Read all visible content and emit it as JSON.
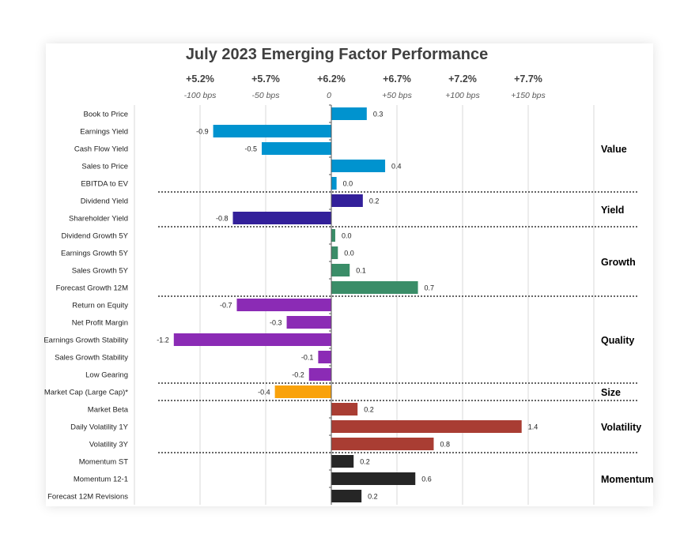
{
  "chart_data": {
    "type": "bar",
    "orientation": "horizontal",
    "title": "July 2023 Emerging Factor Performance",
    "top_tick_labels": [
      "+5.2%",
      "+5.7%",
      "+6.2%",
      "+6.7%",
      "+7.2%",
      "+7.7%"
    ],
    "sub_tick_labels": [
      "-100 bps",
      "-50 bps",
      "0",
      "+50 bps",
      "+100 bps",
      "+150 bps"
    ],
    "xlim": [
      -1.5,
      2.0
    ],
    "grid": true,
    "groups": [
      {
        "name": "Value",
        "color": "#0093cf",
        "items": [
          {
            "label": "Book to Price",
            "value": 0.27,
            "data_label": "0.3"
          },
          {
            "label": "Earnings Yield",
            "value": -0.9,
            "data_label": "-0.9"
          },
          {
            "label": "Cash Flow Yield",
            "value": -0.53,
            "data_label": "-0.5"
          },
          {
            "label": "Sales to Price",
            "value": 0.41,
            "data_label": "0.4"
          },
          {
            "label": "EBITDA to EV",
            "value": 0.04,
            "data_label": "0.0"
          }
        ]
      },
      {
        "name": "Yield",
        "color": "#33209a",
        "items": [
          {
            "label": "Dividend Yield",
            "value": 0.24,
            "data_label": "0.2"
          },
          {
            "label": "Shareholder Yield",
            "value": -0.75,
            "data_label": "-0.8"
          }
        ]
      },
      {
        "name": "Growth",
        "color": "#3a8d68",
        "items": [
          {
            "label": "Dividend Growth 5Y",
            "value": 0.03,
            "data_label": "0.0"
          },
          {
            "label": "Earnings Growth 5Y",
            "value": 0.05,
            "data_label": "0.0"
          },
          {
            "label": "Sales Growth 5Y",
            "value": 0.14,
            "data_label": "0.1"
          },
          {
            "label": "Forecast Growth 12M",
            "value": 0.66,
            "data_label": "0.7"
          }
        ]
      },
      {
        "name": "Quality",
        "color": "#8b2bb5",
        "items": [
          {
            "label": "Return on Equity",
            "value": -0.72,
            "data_label": "-0.7"
          },
          {
            "label": "Net Profit Margin",
            "value": -0.34,
            "data_label": "-0.3"
          },
          {
            "label": "Earnings Growth Stability",
            "value": -1.2,
            "data_label": "-1.2"
          },
          {
            "label": "Sales Growth Stability",
            "value": -0.1,
            "data_label": "-0.1"
          },
          {
            "label": "Low Gearing",
            "value": -0.17,
            "data_label": "-0.2"
          }
        ]
      },
      {
        "name": "Size",
        "color": "#f9a20b",
        "items": [
          {
            "label": "Market Cap (Large Cap)*",
            "value": -0.43,
            "data_label": "-0.4"
          }
        ]
      },
      {
        "name": "Volatility",
        "color": "#a93d33",
        "items": [
          {
            "label": "Market Beta",
            "value": 0.2,
            "data_label": "0.2"
          },
          {
            "label": "Daily Volatility 1Y",
            "value": 1.45,
            "data_label": "1.4"
          },
          {
            "label": "Volatility 3Y",
            "value": 0.78,
            "data_label": "0.8"
          }
        ]
      },
      {
        "name": "Momentum",
        "color": "#262626",
        "items": [
          {
            "label": "Momentum ST",
            "value": 0.17,
            "data_label": "0.2"
          },
          {
            "label": "Momentum 12-1",
            "value": 0.64,
            "data_label": "0.6"
          },
          {
            "label": "Forecast 12M Revisions",
            "value": 0.23,
            "data_label": "0.2"
          }
        ]
      }
    ]
  }
}
